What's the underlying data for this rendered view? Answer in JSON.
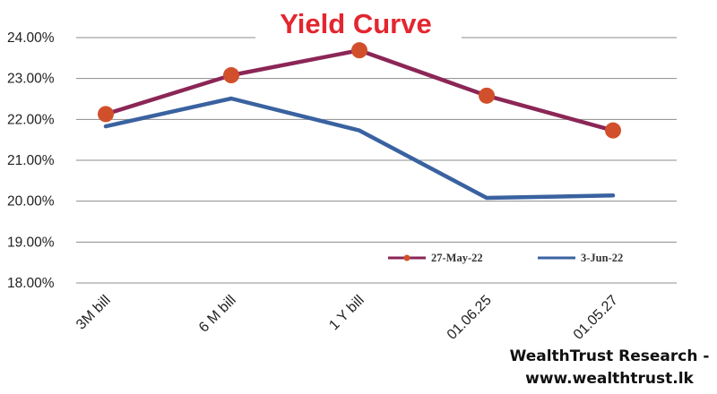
{
  "chart_data": {
    "type": "line",
    "title": "Yield Curve",
    "xlabel": "",
    "ylabel": "",
    "categories": [
      "3M bill",
      "6 M bill",
      "1 Y bill",
      "01.06.25",
      "01.05.27"
    ],
    "ylim": [
      18,
      24
    ],
    "yticks": [
      "18.00%",
      "19.00%",
      "20.00%",
      "21.00%",
      "22.00%",
      "23.00%",
      "24.00%"
    ],
    "grid": true,
    "legend_position": "bottom-right",
    "series": [
      {
        "name": "27-May-22",
        "values": [
          22.13,
          23.08,
          23.69,
          22.58,
          21.73
        ],
        "color": "#8b2656",
        "marker": "circle"
      },
      {
        "name": "3-Jun-22",
        "values": [
          21.83,
          22.51,
          21.73,
          20.08,
          20.14
        ],
        "color": "#3a62a0",
        "marker": "none"
      }
    ],
    "marker_color": "#d1502b"
  },
  "watermark": {
    "line1": "WealthTrust Research -",
    "line2": "www.wealthtrust.lk"
  }
}
